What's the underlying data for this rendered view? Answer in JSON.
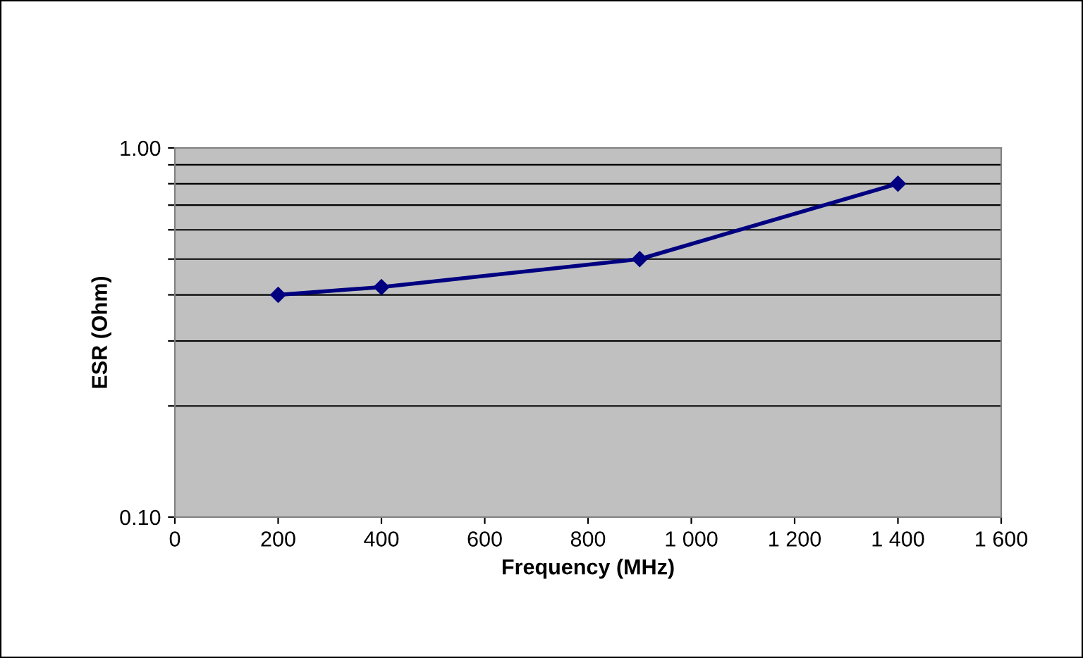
{
  "chart_data": {
    "type": "line",
    "xlabel": "Frequency (MHz)",
    "ylabel": "ESR (Ohm)",
    "x": [
      200,
      400,
      900,
      1400
    ],
    "series": [
      {
        "color": "#000080",
        "values": [
          0.4,
          0.42,
          0.5,
          0.8
        ]
      }
    ],
    "xlim": [
      0,
      1600
    ],
    "xticks": [
      0,
      {
        "value": 200,
        "label": "200"
      },
      {
        "value": 400,
        "label": "400"
      },
      {
        "value": 600,
        "label": "600"
      },
      {
        "value": 800,
        "label": "800"
      },
      {
        "value": 1000,
        "label": "1 000"
      },
      {
        "value": 1200,
        "label": "1 200"
      },
      {
        "value": 1400,
        "label": "1 400"
      },
      {
        "value": 1600,
        "label": "1 600"
      }
    ],
    "ylim": [
      0.1,
      1.0
    ],
    "yticks": [
      {
        "value": 0.1,
        "label": "0.10"
      },
      {
        "value": 0.2,
        "label": null
      },
      {
        "value": 0.3,
        "label": null
      },
      {
        "value": 0.4,
        "label": null
      },
      {
        "value": 0.5,
        "label": null
      },
      {
        "value": 0.6,
        "label": null
      },
      {
        "value": 0.7,
        "label": null
      },
      {
        "value": 0.8,
        "label": null
      },
      {
        "value": 0.9,
        "label": null
      },
      {
        "value": 1.0,
        "label": "1.00"
      }
    ],
    "log": "y",
    "grid": "y",
    "marker": "diamond",
    "line_style": "solid"
  }
}
